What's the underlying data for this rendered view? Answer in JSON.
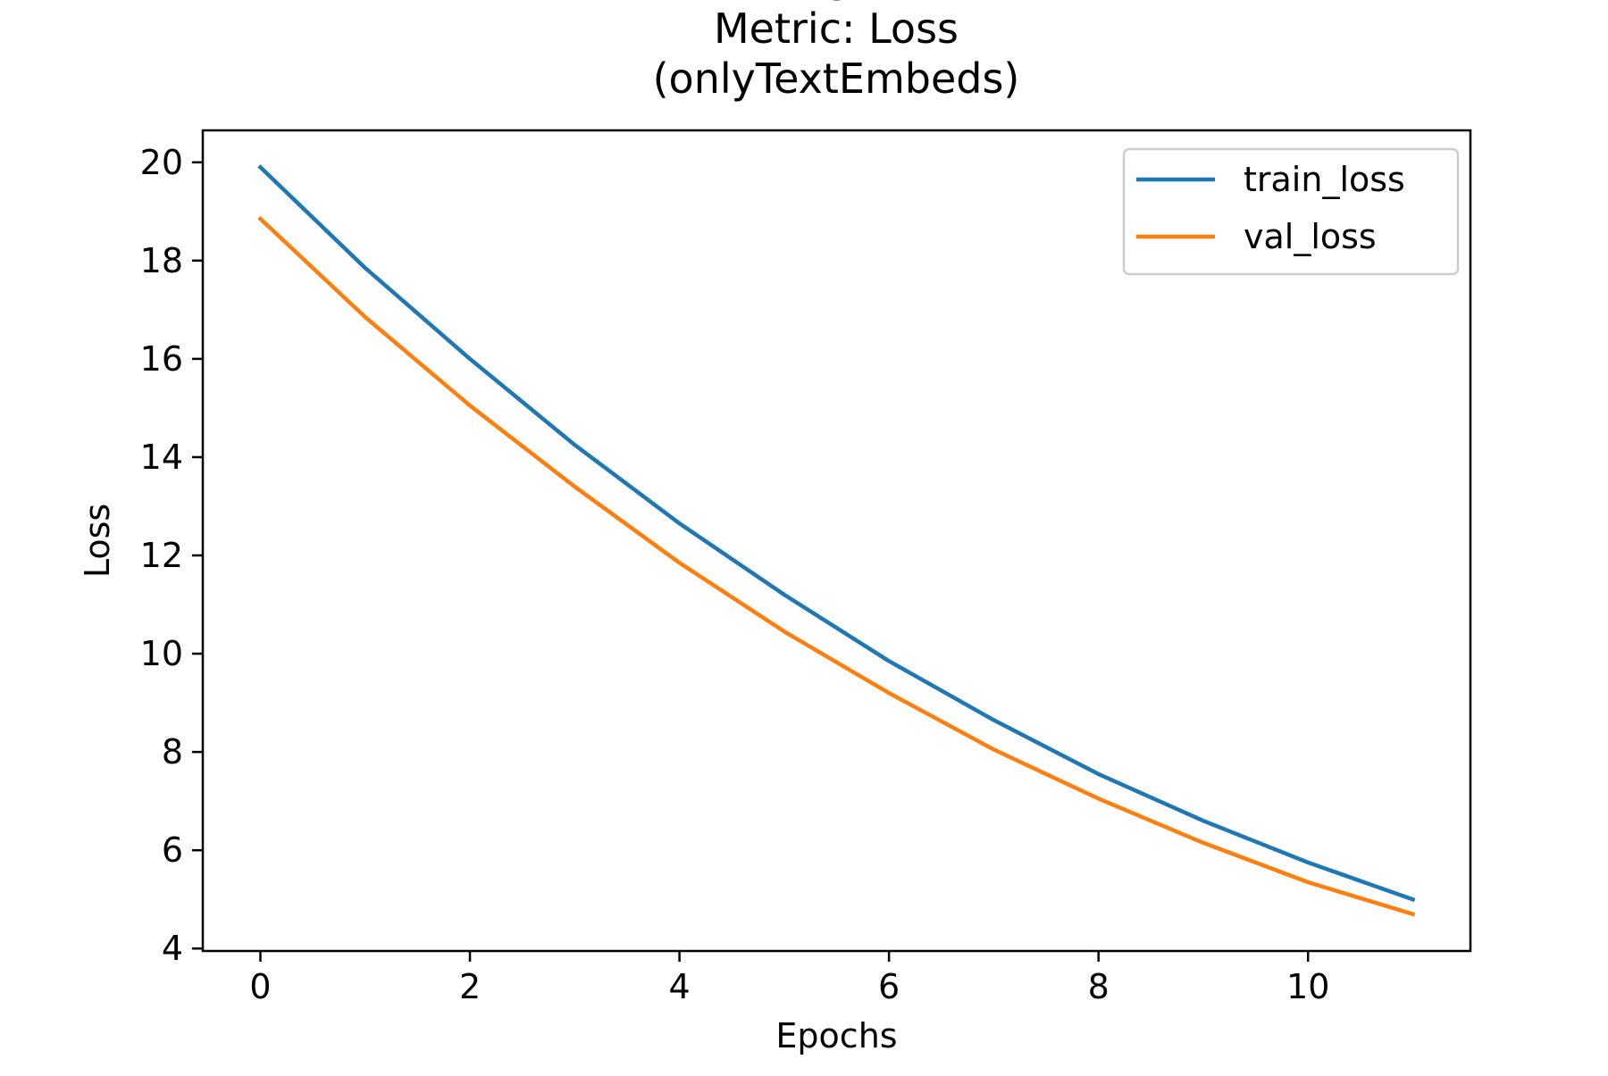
{
  "chart_data": {
    "type": "line",
    "title_lines": [
      "BiLSTM",
      "Metric: Loss",
      "(onlyTextEmbeds)"
    ],
    "xlabel": "Epochs",
    "ylabel": "Loss",
    "xlim": [
      -0.55,
      11.55
    ],
    "ylim": [
      3.95,
      20.65
    ],
    "xticks": [
      0,
      2,
      4,
      6,
      8,
      10
    ],
    "yticks": [
      4,
      6,
      8,
      10,
      12,
      14,
      16,
      18,
      20
    ],
    "x": [
      0,
      1,
      2,
      3,
      4,
      5,
      6,
      7,
      8,
      9,
      10,
      11
    ],
    "series": [
      {
        "name": "train_loss",
        "color": "#1f77b4",
        "values": [
          19.9,
          17.85,
          16.0,
          14.25,
          12.65,
          11.2,
          9.85,
          8.65,
          7.55,
          6.6,
          5.75,
          5.0
        ]
      },
      {
        "name": "val_loss",
        "color": "#ff7f0e",
        "values": [
          18.85,
          16.85,
          15.05,
          13.4,
          11.85,
          10.45,
          9.2,
          8.05,
          7.05,
          6.15,
          5.35,
          4.7
        ]
      }
    ],
    "grid": false,
    "legend_position": "top-right"
  }
}
